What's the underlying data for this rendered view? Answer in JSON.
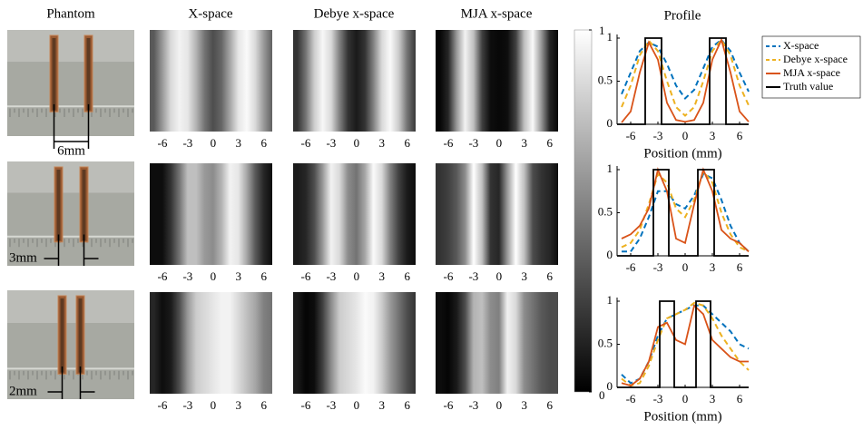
{
  "column_titles": [
    "Phantom",
    "X-space",
    "Debye x-space",
    "MJA x-space",
    "Profile"
  ],
  "colorbar": {
    "ticks": [
      0,
      1
    ],
    "colors": [
      "#000000",
      "#ffffff"
    ]
  },
  "chart_data": [
    {
      "type": "line",
      "annotation": "6mm",
      "xlabel": "Position (mm)",
      "x": [
        -7,
        -6,
        -5,
        -4,
        -3,
        -2,
        -1,
        0,
        1,
        2,
        3,
        4,
        5,
        6,
        7
      ],
      "xlim": [
        -7.5,
        7
      ],
      "ylim": [
        0,
        1
      ],
      "xticks": [
        -6,
        -3,
        0,
        3,
        6
      ],
      "yticks": [
        0,
        0.5,
        1
      ],
      "legend": "outside right",
      "series": [
        {
          "name": "X-space",
          "color": "#0072bd",
          "dash": true,
          "values": [
            0.35,
            0.6,
            0.85,
            0.95,
            0.9,
            0.7,
            0.45,
            0.3,
            0.4,
            0.65,
            0.9,
            0.98,
            0.85,
            0.6,
            0.38
          ]
        },
        {
          "name": "Debye x-space",
          "color": "#edb120",
          "dash": true,
          "values": [
            0.2,
            0.45,
            0.8,
            0.97,
            0.85,
            0.5,
            0.2,
            0.1,
            0.2,
            0.5,
            0.85,
            0.98,
            0.8,
            0.45,
            0.22
          ]
        },
        {
          "name": "MJA x-space",
          "color": "#d95319",
          "dash": false,
          "values": [
            0.02,
            0.15,
            0.6,
            0.95,
            0.75,
            0.25,
            0.05,
            0.03,
            0.05,
            0.25,
            0.75,
            0.98,
            0.6,
            0.15,
            0.03
          ]
        },
        {
          "name": "Truth value",
          "color": "#000000",
          "dash": false,
          "x": [
            -7.5,
            -4.4,
            -4.4,
            -2.6,
            -2.6,
            2.7,
            2.7,
            4.5,
            4.5,
            7
          ],
          "values": [
            0,
            0,
            1,
            1,
            0,
            0,
            1,
            1,
            0,
            0
          ]
        }
      ]
    },
    {
      "type": "line",
      "annotation": "3mm",
      "x": [
        -7,
        -6,
        -5,
        -4,
        -3,
        -2,
        -1,
        0,
        1,
        2,
        3,
        4,
        5,
        6,
        7
      ],
      "xlim": [
        -7.5,
        7
      ],
      "ylim": [
        0,
        1
      ],
      "xticks": [
        -6,
        -3,
        0,
        3,
        6
      ],
      "yticks": [
        0,
        0.5,
        1
      ],
      "series": [
        {
          "color": "#0072bd",
          "dash": true,
          "values": [
            0.05,
            0.05,
            0.2,
            0.45,
            0.75,
            0.75,
            0.6,
            0.55,
            0.7,
            0.95,
            0.9,
            0.65,
            0.35,
            0.15,
            0.05
          ]
        },
        {
          "color": "#edb120",
          "dash": true,
          "values": [
            0.1,
            0.15,
            0.3,
            0.6,
            0.95,
            0.85,
            0.55,
            0.45,
            0.65,
            0.98,
            0.85,
            0.5,
            0.25,
            0.1,
            0.05
          ]
        },
        {
          "color": "#d95319",
          "dash": false,
          "values": [
            0.2,
            0.25,
            0.35,
            0.55,
            1,
            0.75,
            0.2,
            0.15,
            0.6,
            1,
            0.75,
            0.3,
            0.2,
            0.15,
            0.05
          ]
        },
        {
          "color": "#000000",
          "dash": false,
          "x": [
            -7.5,
            -3.5,
            -3.5,
            -1.8,
            -1.8,
            1.4,
            1.4,
            3.2,
            3.2,
            7
          ],
          "values": [
            0,
            0,
            1,
            1,
            0,
            0,
            1,
            1,
            0,
            0
          ]
        }
      ]
    },
    {
      "type": "line",
      "annotation": "2mm",
      "xlabel": "Position (mm)",
      "x": [
        -7,
        -6,
        -5,
        -4,
        -3,
        -2,
        -1,
        0,
        1,
        2,
        3,
        4,
        5,
        6,
        7
      ],
      "xlim": [
        -7.5,
        7
      ],
      "ylim": [
        0,
        1
      ],
      "xticks": [
        -6,
        -3,
        0,
        3,
        6
      ],
      "yticks": [
        0,
        0.5,
        1
      ],
      "series": [
        {
          "color": "#0072bd",
          "dash": true,
          "values": [
            0.15,
            0.05,
            0.1,
            0.3,
            0.6,
            0.8,
            0.85,
            0.9,
            0.95,
            0.95,
            0.85,
            0.75,
            0.65,
            0.5,
            0.45
          ]
        },
        {
          "color": "#edb120",
          "dash": true,
          "values": [
            0.1,
            0.02,
            0.05,
            0.25,
            0.55,
            0.8,
            0.85,
            0.9,
            0.98,
            0.95,
            0.8,
            0.6,
            0.45,
            0.3,
            0.2
          ]
        },
        {
          "color": "#d95319",
          "dash": false,
          "values": [
            0.05,
            0.02,
            0.1,
            0.3,
            0.7,
            0.75,
            0.55,
            0.5,
            0.95,
            0.85,
            0.55,
            0.45,
            0.35,
            0.3,
            0.3
          ]
        },
        {
          "color": "#000000",
          "dash": false,
          "x": [
            -7.5,
            -2.8,
            -2.8,
            -1.2,
            -1.2,
            1.2,
            1.2,
            2.8,
            2.8,
            7
          ],
          "values": [
            0,
            0,
            1,
            1,
            0,
            0,
            1,
            1,
            0,
            0
          ]
        }
      ]
    }
  ]
}
